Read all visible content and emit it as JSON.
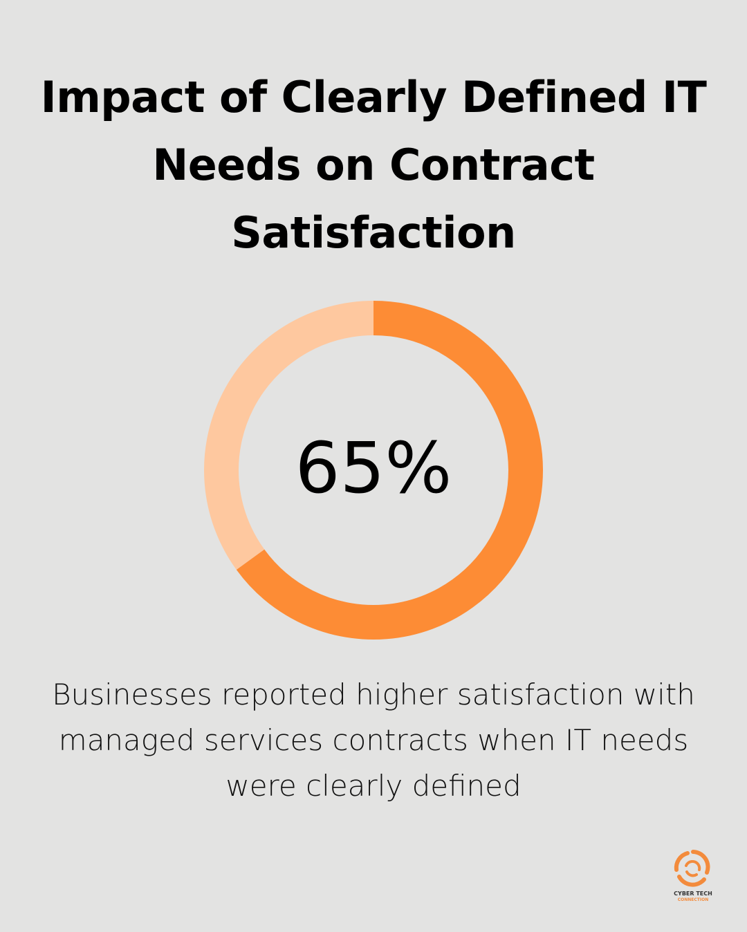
{
  "title_lines": [
    "Impact of Clearly Defined IT",
    "Needs on Contract",
    "Satisfaction"
  ],
  "chart_data": {
    "type": "pie",
    "values": [
      65,
      35
    ],
    "value_label": "65%",
    "colors": {
      "value": "#fd8c35",
      "remainder": "#fec89f"
    }
  },
  "caption_lines": [
    "Businesses reported higher satisfaction with",
    "managed services contracts when IT needs",
    "were clearly defined"
  ],
  "logo": {
    "icon": "swirl-logo-icon",
    "line1": "CYBER TECH",
    "line2": "CONNECTION",
    "color": "#f38b3c"
  }
}
